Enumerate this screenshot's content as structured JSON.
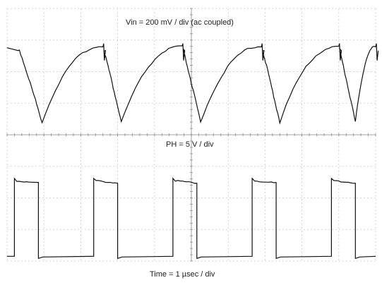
{
  "chart_data": {
    "type": "line",
    "title": "",
    "grid": true,
    "x_divisions": 10,
    "y_divisions": 8,
    "xlabel": "Time = 1 µsec / div",
    "x_unit": "µsec",
    "x_range": [
      0,
      10
    ],
    "switching_period_div": 2.15,
    "series": [
      {
        "name": "Vin = 200 mV / div (ac coupled)",
        "scale_per_div": "200 mV",
        "coupling": "ac",
        "shape": "sawtooth ripple",
        "peak_pp_div": 2.4,
        "cycles": [
          {
            "t_min": 0.95,
            "t_max": 2.6
          },
          {
            "t_min": 3.1,
            "t_max": 4.75
          },
          {
            "t_min": 5.25,
            "t_max": 6.9
          },
          {
            "t_min": 7.4,
            "t_max": 9.0
          },
          {
            "t_min": 9.45,
            "t_max": 10.0
          }
        ]
      },
      {
        "name": "PH = 5 V / div",
        "scale_per_div": "5 V",
        "shape": "square wave",
        "high_div": 2.4,
        "low_div": 0.0,
        "pulses": [
          {
            "t_on": 0.2,
            "t_off": 0.85
          },
          {
            "t_on": 2.35,
            "t_off": 3.0
          },
          {
            "t_on": 4.5,
            "t_off": 5.15
          },
          {
            "t_on": 6.65,
            "t_off": 7.3
          },
          {
            "t_on": 8.8,
            "t_off": 9.45
          }
        ]
      }
    ]
  }
}
